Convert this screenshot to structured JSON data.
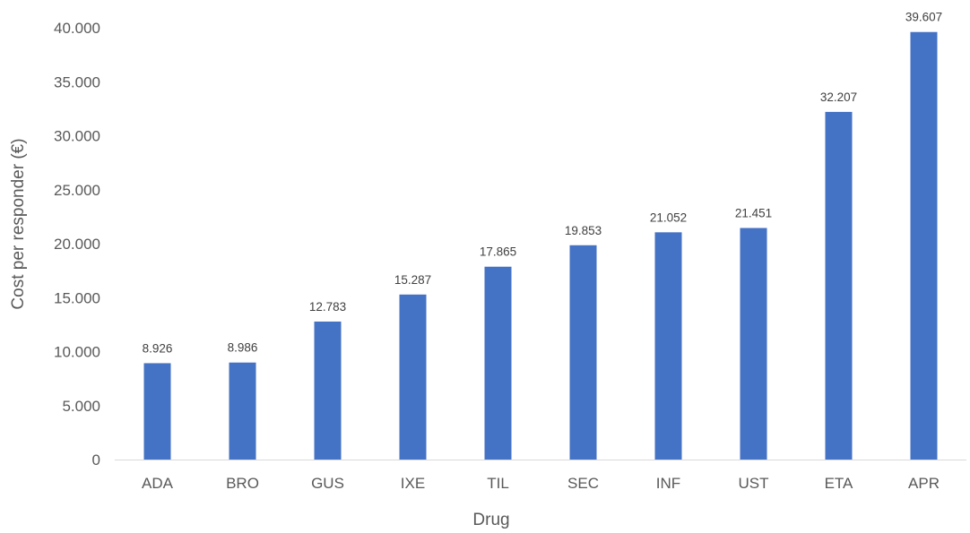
{
  "chart_data": {
    "type": "bar",
    "categories": [
      "ADA",
      "BRO",
      "GUS",
      "IXE",
      "TIL",
      "SEC",
      "INF",
      "UST",
      "ETA",
      "APR"
    ],
    "values": [
      8926,
      8986,
      12783,
      15287,
      17865,
      19853,
      21052,
      21451,
      32207,
      39607
    ],
    "value_labels": [
      "8.926",
      "8.986",
      "12.783",
      "15.287",
      "17.865",
      "19.853",
      "21.052",
      "21.451",
      "32.207",
      "39.607"
    ],
    "xlabel": "Drug",
    "ylabel": "Cost per responder (€)",
    "ylim": [
      0,
      40000
    ],
    "yticks": [
      0,
      5000,
      10000,
      15000,
      20000,
      25000,
      30000,
      35000,
      40000
    ],
    "ytick_labels": [
      "0",
      "5.000",
      "10.000",
      "15.000",
      "20.000",
      "25.000",
      "30.000",
      "35.000",
      "40.000"
    ],
    "grid": false,
    "legend": "none",
    "bar_color": "#4472C4"
  }
}
